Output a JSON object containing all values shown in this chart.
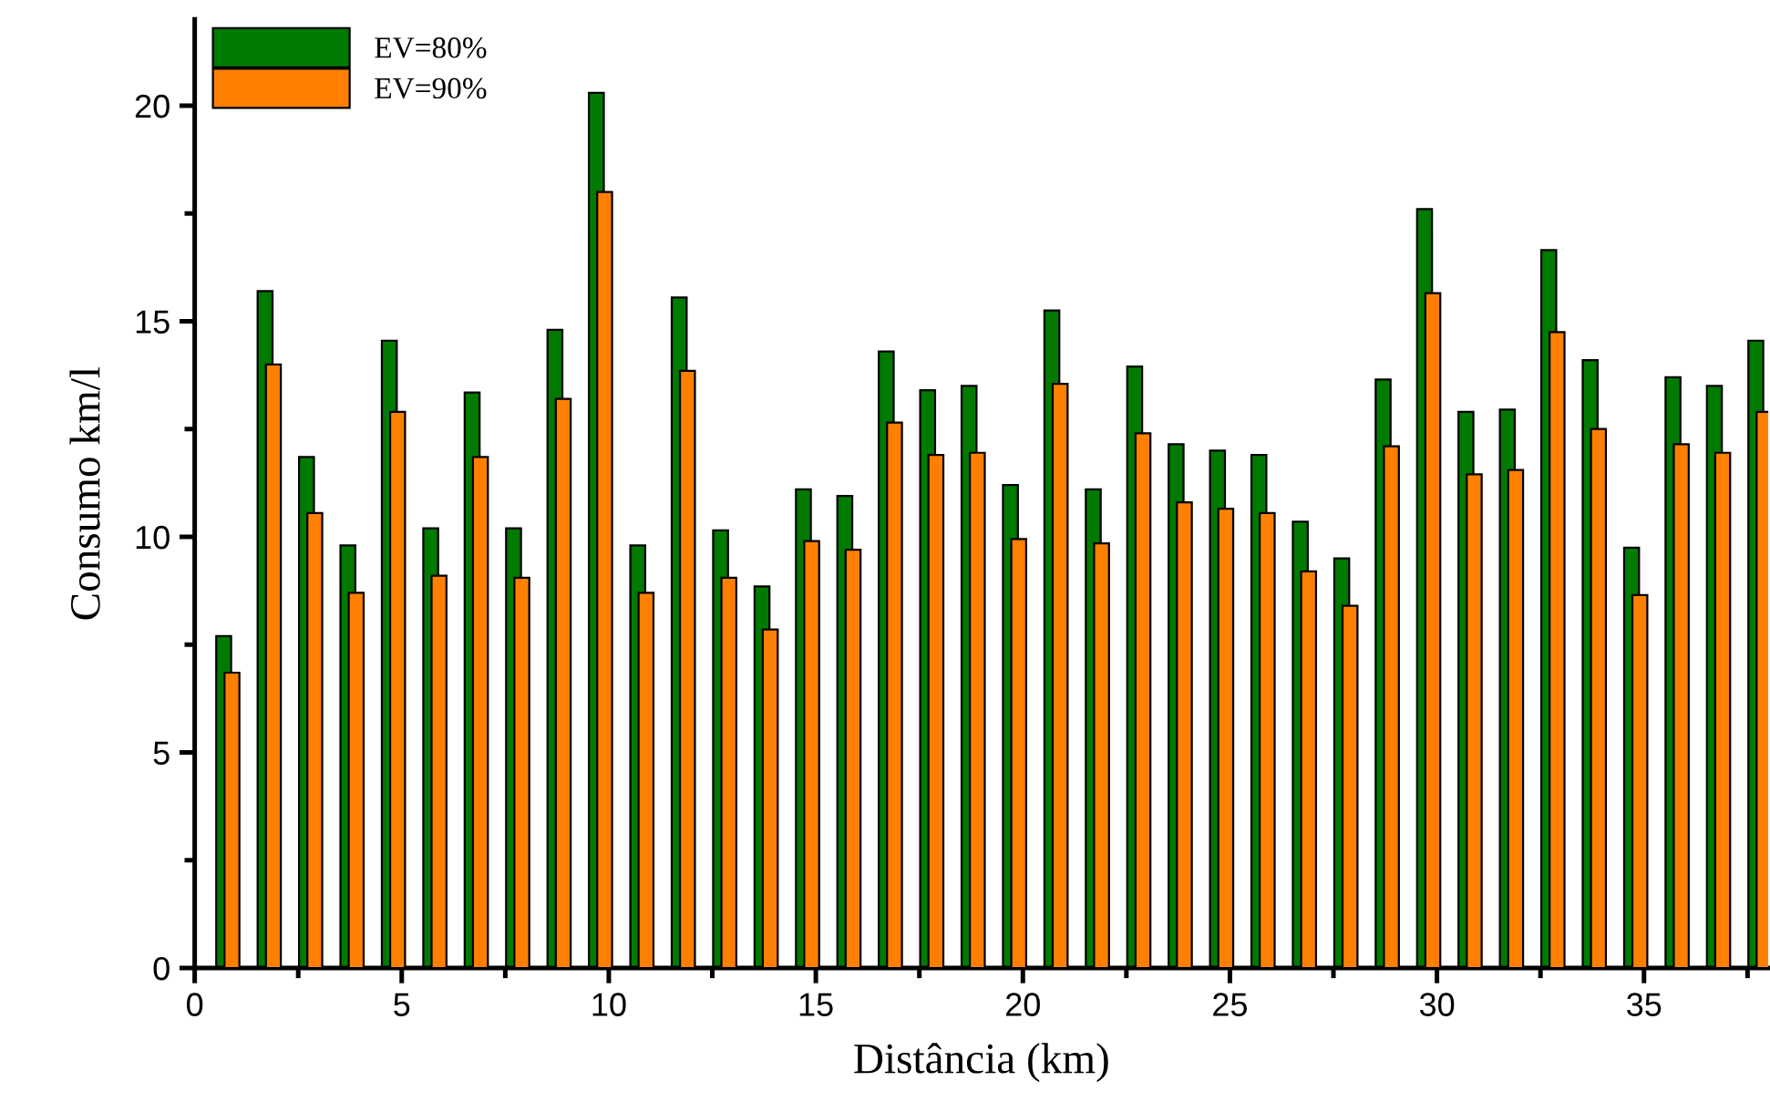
{
  "chart_data": {
    "type": "bar",
    "xlabel": "Distância (km)",
    "ylabel": "Consumo km/l",
    "x": [
      1,
      2,
      3,
      4,
      5,
      6,
      7,
      8,
      9,
      10,
      11,
      12,
      13,
      14,
      15,
      16,
      17,
      18,
      19,
      20,
      21,
      22,
      23,
      24,
      25,
      26,
      27,
      28,
      29,
      30,
      31,
      32,
      33,
      34,
      35,
      36,
      37,
      38
    ],
    "series": [
      {
        "name": "EV=80%",
        "color": "#007a00",
        "values": [
          7.7,
          15.7,
          11.85,
          9.8,
          14.55,
          10.2,
          13.35,
          10.2,
          14.8,
          20.3,
          9.8,
          15.55,
          10.15,
          8.85,
          11.1,
          10.95,
          14.3,
          13.4,
          13.5,
          11.2,
          15.25,
          11.1,
          13.95,
          12.15,
          12.0,
          11.9,
          10.35,
          9.5,
          13.65,
          17.6,
          12.9,
          12.95,
          16.65,
          14.1,
          9.75,
          13.7,
          13.5,
          14.55
        ]
      },
      {
        "name": "EV=90%",
        "color": "#ff8000",
        "values": [
          6.85,
          14.0,
          10.55,
          8.7,
          12.9,
          9.1,
          11.85,
          9.05,
          13.2,
          18.0,
          8.7,
          13.85,
          9.05,
          7.85,
          9.9,
          9.7,
          12.65,
          11.9,
          11.95,
          9.95,
          13.55,
          9.85,
          12.4,
          10.8,
          10.65,
          10.55,
          9.2,
          8.4,
          12.1,
          15.65,
          11.45,
          11.55,
          14.75,
          12.5,
          8.65,
          12.15,
          11.95,
          12.9
        ]
      }
    ],
    "xlim": [
      0,
      38
    ],
    "ylim": [
      0,
      22
    ],
    "xticks": [
      0,
      {
        "value": 2.5,
        "label": null
      },
      5,
      {
        "value": 7.5,
        "label": null
      },
      10,
      {
        "value": 12.5,
        "label": null
      },
      15,
      {
        "value": 17.5,
        "label": null
      },
      20,
      {
        "value": 22.5,
        "label": null
      },
      25,
      {
        "value": 27.5,
        "label": null
      },
      30,
      {
        "value": 32.5,
        "label": null
      },
      35,
      {
        "value": 37.5,
        "label": null
      }
    ],
    "yticks": [
      0,
      {
        "value": 2.5,
        "label": null
      },
      5,
      {
        "value": 7.5,
        "label": null
      },
      10,
      {
        "value": 12.5,
        "label": null
      },
      15,
      {
        "value": 17.5,
        "label": null
      },
      20
    ],
    "grid": false,
    "legend": "top left"
  }
}
